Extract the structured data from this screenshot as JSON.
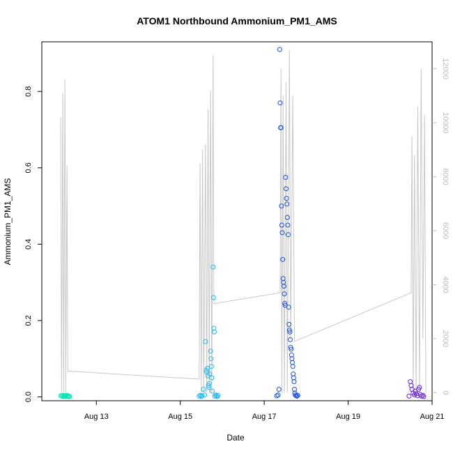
{
  "chart_data": {
    "type": "scatter",
    "title": "ATOM1 Northbound Ammonium_PM1_AMS",
    "xlabel": "Date",
    "ylabel": "Ammonium_PM1_AMS",
    "x_unit": "days (August)",
    "xlim": [
      11.7,
      21.0
    ],
    "ylim": [
      -0.01,
      0.93
    ],
    "y2lim": [
      -300,
      13000
    ],
    "x_ticks": [
      13,
      15,
      17,
      19,
      21
    ],
    "x_tick_labels": [
      "Aug 13",
      "Aug 15",
      "Aug 17",
      "Aug 19",
      "Aug 21"
    ],
    "y_ticks": [
      0.0,
      0.2,
      0.4,
      0.6,
      0.8
    ],
    "y_tick_labels": [
      "0.0",
      "0.2",
      "0.4",
      "0.6",
      "0.8"
    ],
    "y2_ticks": [
      0,
      2000,
      4000,
      6000,
      8000,
      10000,
      12000
    ],
    "y2_tick_labels": [
      "0",
      "2000",
      "4000",
      "6000",
      "8000",
      "10000",
      "12000"
    ],
    "grid": false,
    "legend": "none",
    "secondary_line_color": "#c8c8c8",
    "series": [
      {
        "color": "#00e5b0",
        "points": [
          [
            12.15,
            0.003
          ],
          [
            12.18,
            0.002
          ],
          [
            12.2,
            0.004
          ],
          [
            12.22,
            0.001
          ],
          [
            12.24,
            0.003
          ],
          [
            12.26,
            0.002
          ],
          [
            12.28,
            0.004
          ],
          [
            12.3,
            0.001
          ],
          [
            12.32,
            0.003
          ],
          [
            12.34,
            0.002
          ],
          [
            12.36,
            0.001
          ]
        ]
      },
      {
        "color": "#1fb8f0",
        "points": [
          [
            15.45,
            0.002
          ],
          [
            15.48,
            0.004
          ],
          [
            15.5,
            0.001
          ],
          [
            15.52,
            0.003
          ],
          [
            15.55,
            0.02
          ],
          [
            15.58,
            0.005
          ],
          [
            15.6,
            0.145
          ],
          [
            15.62,
            0.07
          ],
          [
            15.63,
            0.065
          ],
          [
            15.65,
            0.075
          ],
          [
            15.66,
            0.055
          ],
          [
            15.67,
            0.03
          ],
          [
            15.68,
            0.025
          ],
          [
            15.69,
            0.035
          ],
          [
            15.7,
            0.06
          ],
          [
            15.72,
            0.12
          ],
          [
            15.73,
            0.1
          ],
          [
            15.74,
            0.08
          ],
          [
            15.75,
            0.05
          ],
          [
            15.76,
            0.015
          ],
          [
            15.78,
            0.34
          ],
          [
            15.79,
            0.26
          ],
          [
            15.8,
            0.18
          ],
          [
            15.81,
            0.17
          ],
          [
            15.82,
            0.002
          ],
          [
            15.84,
            0.005
          ],
          [
            15.86,
            0.003
          ],
          [
            15.88,
            0.001
          ],
          [
            15.9,
            0.004
          ]
        ]
      },
      {
        "color": "#1a4fe0",
        "points": [
          [
            17.3,
            0.003
          ],
          [
            17.33,
            0.005
          ],
          [
            17.35,
            0.02
          ],
          [
            17.37,
            0.91
          ],
          [
            17.38,
            0.77
          ],
          [
            17.39,
            0.705
          ],
          [
            17.4,
            0.705
          ],
          [
            17.41,
            0.5
          ],
          [
            17.42,
            0.45
          ],
          [
            17.43,
            0.43
          ],
          [
            17.44,
            0.36
          ],
          [
            17.45,
            0.31
          ],
          [
            17.46,
            0.3
          ],
          [
            17.47,
            0.29
          ],
          [
            17.48,
            0.27
          ],
          [
            17.49,
            0.245
          ],
          [
            17.5,
            0.24
          ],
          [
            17.51,
            0.575
          ],
          [
            17.52,
            0.545
          ],
          [
            17.53,
            0.52
          ],
          [
            17.54,
            0.505
          ],
          [
            17.55,
            0.47
          ],
          [
            17.56,
            0.45
          ],
          [
            17.57,
            0.425
          ],
          [
            17.58,
            0.235
          ],
          [
            17.59,
            0.19
          ],
          [
            17.6,
            0.175
          ],
          [
            17.61,
            0.17
          ],
          [
            17.62,
            0.15
          ],
          [
            17.63,
            0.13
          ],
          [
            17.64,
            0.125
          ],
          [
            17.65,
            0.11
          ],
          [
            17.66,
            0.1
          ],
          [
            17.67,
            0.09
          ],
          [
            17.68,
            0.08
          ],
          [
            17.69,
            0.06
          ],
          [
            17.7,
            0.05
          ],
          [
            17.71,
            0.04
          ],
          [
            17.72,
            0.02
          ],
          [
            17.73,
            0.01
          ],
          [
            17.74,
            0.005
          ],
          [
            17.76,
            0.003
          ],
          [
            17.78,
            0.002
          ],
          [
            17.8,
            0.004
          ]
        ]
      },
      {
        "color": "#6a1fe6",
        "points": [
          [
            20.45,
            0.002
          ],
          [
            20.48,
            0.04
          ],
          [
            20.5,
            0.03
          ],
          [
            20.52,
            0.02
          ],
          [
            20.55,
            0.01
          ],
          [
            20.58,
            0.005
          ],
          [
            20.6,
            0.015
          ],
          [
            20.62,
            0.008
          ],
          [
            20.65,
            0.003
          ],
          [
            20.68,
            0.02
          ],
          [
            20.7,
            0.025
          ],
          [
            20.72,
            0.006
          ],
          [
            20.75,
            0.002
          ],
          [
            20.78,
            0.004
          ],
          [
            20.8,
            0.001
          ]
        ]
      }
    ],
    "secondary_line": {
      "y_axis": "right",
      "points": [
        [
          12.15,
          10200
        ],
        [
          12.17,
          0
        ],
        [
          12.2,
          11100
        ],
        [
          12.22,
          0
        ],
        [
          12.25,
          11600
        ],
        [
          12.27,
          0
        ],
        [
          12.3,
          8400
        ],
        [
          12.32,
          800
        ],
        [
          15.45,
          500
        ],
        [
          15.47,
          8500
        ],
        [
          15.5,
          0
        ],
        [
          15.53,
          9000
        ],
        [
          15.56,
          0
        ],
        [
          15.6,
          9200
        ],
        [
          15.63,
          0
        ],
        [
          15.66,
          10500
        ],
        [
          15.69,
          0
        ],
        [
          15.72,
          11200
        ],
        [
          15.75,
          0
        ],
        [
          15.78,
          12500
        ],
        [
          15.8,
          3300
        ],
        [
          17.38,
          3700
        ],
        [
          17.4,
          12000
        ],
        [
          17.42,
          0
        ],
        [
          17.45,
          11000
        ],
        [
          17.48,
          0
        ],
        [
          17.52,
          11500
        ],
        [
          17.55,
          0
        ],
        [
          17.6,
          12700
        ],
        [
          17.63,
          2000
        ],
        [
          17.68,
          11000
        ],
        [
          17.72,
          1900
        ],
        [
          20.5,
          3700
        ],
        [
          20.52,
          9500
        ],
        [
          20.55,
          0
        ],
        [
          20.58,
          8800
        ],
        [
          20.62,
          0
        ],
        [
          20.66,
          10600
        ],
        [
          20.7,
          0
        ],
        [
          20.74,
          12000
        ],
        [
          20.78,
          2000
        ],
        [
          20.82,
          10300
        ],
        [
          20.85,
          0
        ]
      ]
    }
  }
}
